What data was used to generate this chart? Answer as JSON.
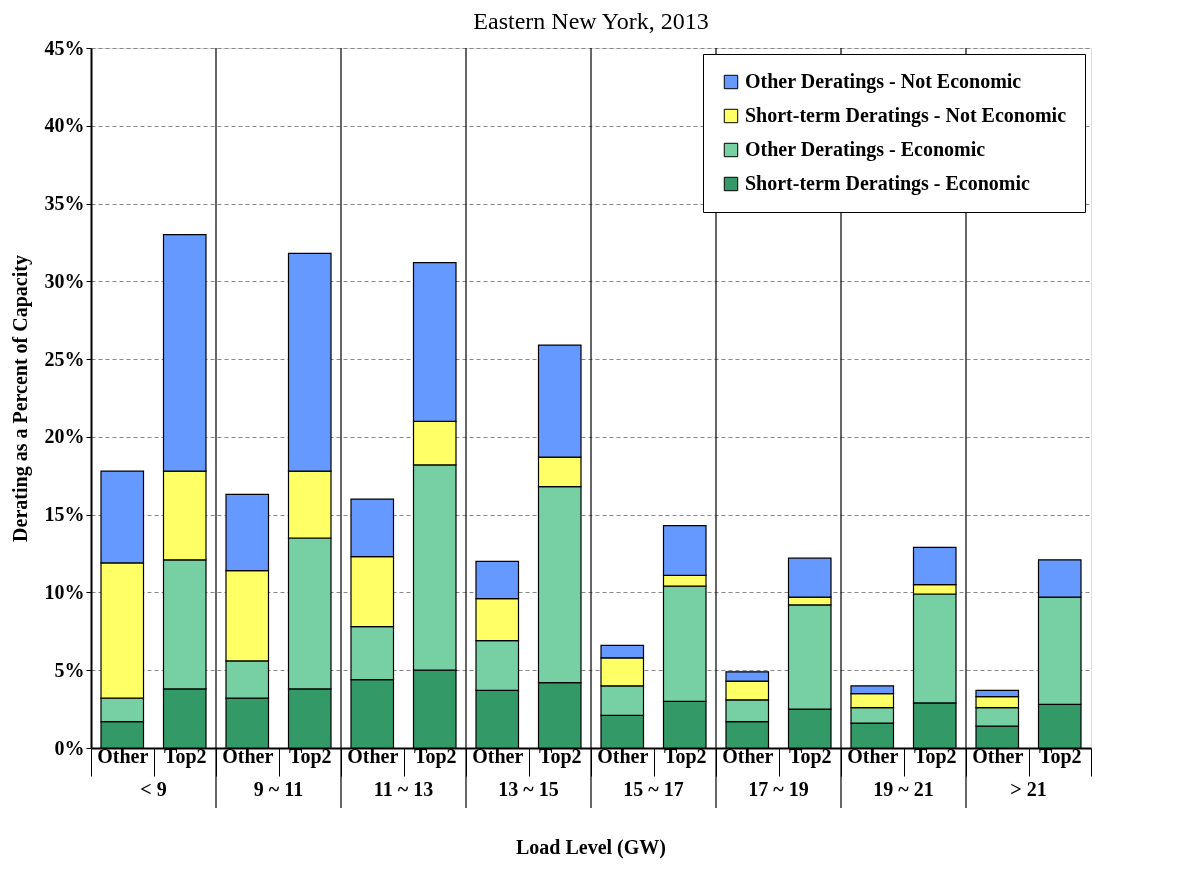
{
  "chart_data": {
    "type": "bar",
    "stacked": true,
    "title": "Eastern New York, 2013",
    "xlabel": "Load Level (GW)",
    "ylabel": "Derating as a Percent of Capacity",
    "categories": [
      "Other",
      "Top2",
      "Other",
      "Top2",
      "Other",
      "Top2",
      "Other",
      "Top2",
      "Other",
      "Top2",
      "Other",
      "Top2",
      "Other",
      "Top2",
      "Other",
      "Top2"
    ],
    "annotations": [
      "< 9",
      "9 ~ 11",
      "11 ~ 13",
      "13 ~ 15",
      "15 ~ 17",
      "17 ~ 19",
      "19 ~ 21",
      "> 21"
    ],
    "series": [
      {
        "name": "Short-term Deratings - Economic",
        "color": "#339966",
        "values": [
          1.7,
          3.8,
          3.2,
          3.8,
          4.4,
          5.0,
          3.7,
          4.2,
          2.1,
          3.0,
          1.7,
          2.5,
          1.6,
          2.9,
          1.4,
          2.8
        ]
      },
      {
        "name": "Other Deratings - Economic",
        "color": "#77d0a3",
        "values": [
          1.5,
          8.3,
          2.4,
          9.7,
          3.4,
          13.2,
          3.2,
          12.6,
          1.9,
          7.4,
          1.4,
          6.7,
          1.0,
          7.0,
          1.2,
          6.9
        ]
      },
      {
        "name": "Short-term Deratings - Not Economic",
        "color": "#ffff66",
        "values": [
          8.7,
          5.7,
          5.8,
          4.3,
          4.5,
          2.8,
          2.7,
          1.9,
          1.8,
          0.7,
          1.2,
          0.5,
          0.9,
          0.6,
          0.7,
          null
        ]
      },
      {
        "name": "Other Deratings - Not Economic",
        "color": "#6699ff",
        "values": [
          5.9,
          15.2,
          4.9,
          14.0,
          3.7,
          10.2,
          2.4,
          7.2,
          0.8,
          3.2,
          0.6,
          2.5,
          0.5,
          2.4,
          0.4,
          2.4
        ]
      }
    ],
    "ylim": [
      0,
      45
    ],
    "yticks": [
      {
        "value": 0,
        "label": "0%"
      },
      {
        "value": 5,
        "label": "5%"
      },
      {
        "value": 10,
        "label": "10%"
      },
      {
        "value": 15,
        "label": "15%"
      },
      {
        "value": 20,
        "label": "20%"
      },
      {
        "value": 25,
        "label": "25%"
      },
      {
        "value": 30,
        "label": "30%"
      },
      {
        "value": 35,
        "label": "35%"
      },
      {
        "value": 40,
        "label": "40%"
      },
      {
        "value": 45,
        "label": "45%"
      }
    ],
    "grid": "y",
    "legend": "top right"
  }
}
